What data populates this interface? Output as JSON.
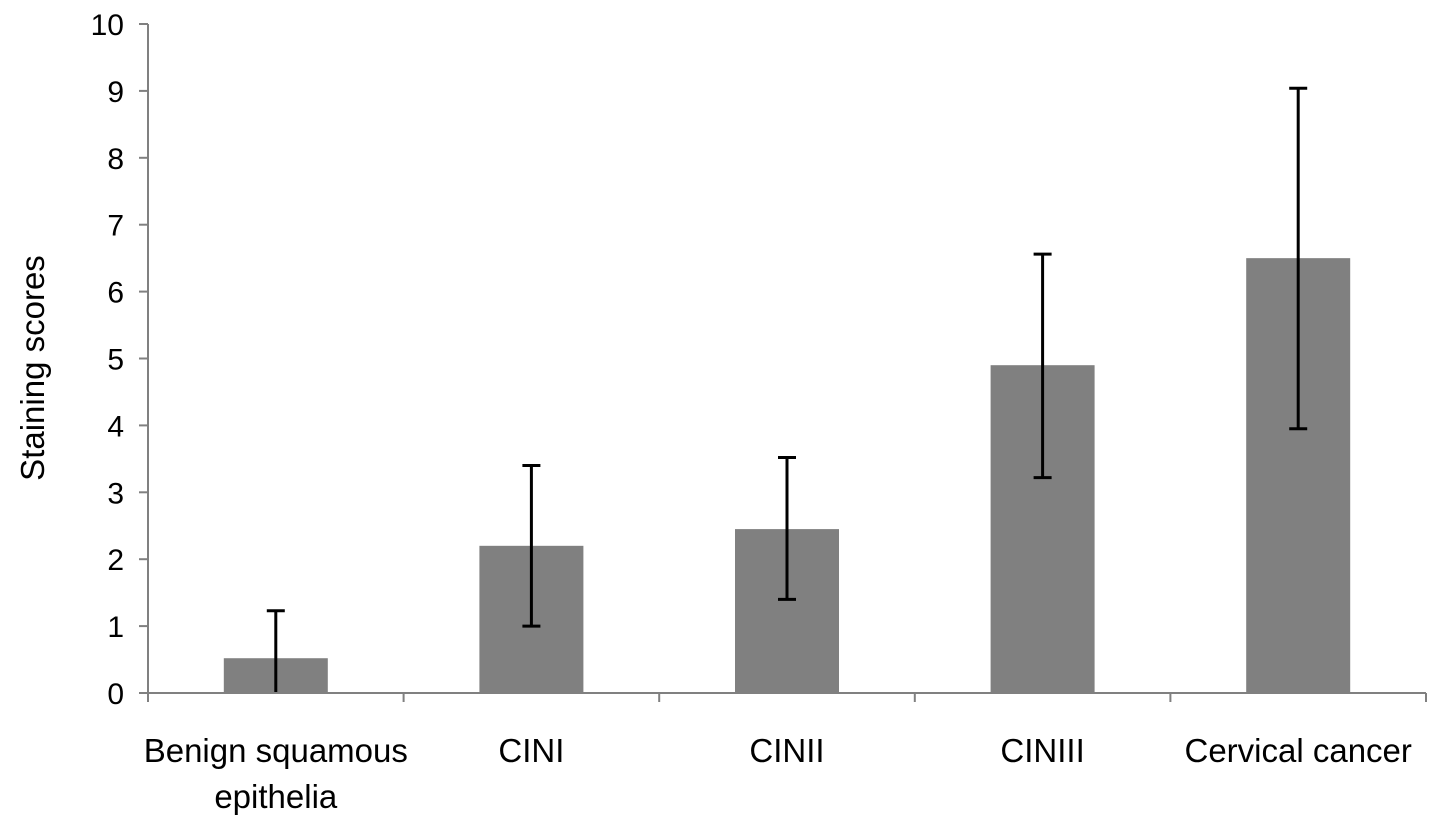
{
  "chart_data": {
    "type": "bar",
    "ylabel": "Staining scores",
    "ylim": [
      0,
      10
    ],
    "yticks": [
      "0",
      "1",
      "2",
      "3",
      "4",
      "5",
      "6",
      "7",
      "8",
      "9",
      "10"
    ],
    "categories": [
      [
        "Benign squamous",
        "epithelia"
      ],
      [
        "CINI"
      ],
      [
        "CINII"
      ],
      [
        "CINIII"
      ],
      [
        "Cervical cancer"
      ]
    ],
    "values": [
      0.52,
      2.2,
      2.45,
      4.9,
      6.5
    ],
    "error_low": [
      0.0,
      1.0,
      1.4,
      3.22,
      3.95
    ],
    "error_high": [
      1.23,
      3.4,
      3.52,
      6.56,
      9.04
    ],
    "grid": false,
    "legend": false,
    "colors": {
      "bar": "#808080",
      "axis": "#808080",
      "error": "#000000"
    }
  }
}
